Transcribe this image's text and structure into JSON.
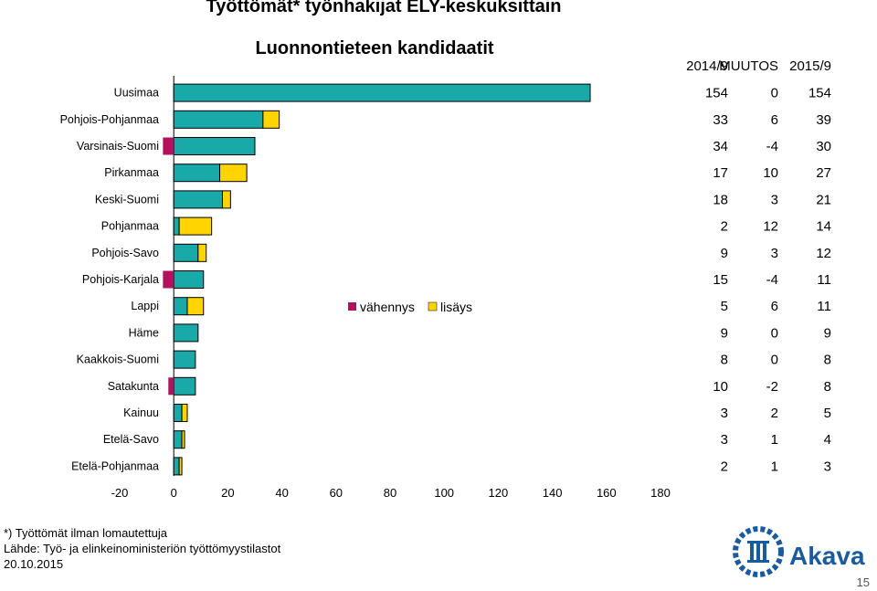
{
  "title": "Työttömät* työnhakijat ELY-keskuksittain",
  "subtitle": "Luonnontieteen kandidaatit",
  "table_headers": [
    "2014/9",
    "MUUTOS",
    "2015/9"
  ],
  "footnote": "*) Työttömät ilman lomautettuja",
  "source": "Lähde: Työ- ja elinkeinoministeriön työttömyystilastot",
  "date": "20.10.2015",
  "page_number": "15",
  "logo_text": "Akava",
  "colors": {
    "base": "#1aa9a9",
    "increase": "#ffd400",
    "decrease": "#b0125d",
    "logo": "#1a5a9e"
  },
  "chart_data": {
    "type": "bar",
    "orientation": "horizontal",
    "stacked": true,
    "categories": [
      "Uusimaa",
      "Pohjois-Pohjanmaa",
      "Varsinais-Suomi",
      "Pirkanmaa",
      "Keski-Suomi",
      "Pohjanmaa",
      "Pohjois-Savo",
      "Pohjois-Karjala",
      "Lappi",
      "Häme",
      "Kaakkois-Suomi",
      "Satakunta",
      "Kainuu",
      "Etelä-Savo",
      "Etelä-Pohjanmaa"
    ],
    "values_2014": [
      154,
      33,
      34,
      17,
      18,
      2,
      9,
      15,
      5,
      9,
      8,
      10,
      3,
      3,
      2
    ],
    "change": [
      0,
      6,
      -4,
      10,
      3,
      12,
      3,
      -4,
      6,
      0,
      0,
      -2,
      2,
      1,
      1
    ],
    "values_2015": [
      154,
      39,
      30,
      27,
      21,
      14,
      12,
      11,
      11,
      9,
      8,
      8,
      5,
      4,
      3
    ],
    "change_labels": [
      "0",
      "6",
      "-4",
      "10",
      "3",
      "12",
      "3",
      "-4",
      "6",
      "0",
      "0",
      "-2",
      "2",
      "1",
      "1"
    ],
    "series": [
      {
        "name": "vähennys"
      },
      {
        "name": "lisäys"
      }
    ],
    "xlim": [
      -20,
      180
    ],
    "xticks": [
      "-20",
      "0",
      "20",
      "40",
      "60",
      "80",
      "100",
      "120",
      "140",
      "160",
      "180"
    ],
    "xtick_values": [
      -20,
      0,
      20,
      40,
      60,
      80,
      100,
      120,
      140,
      160,
      180
    ],
    "legend_position": "center",
    "grid": false
  }
}
